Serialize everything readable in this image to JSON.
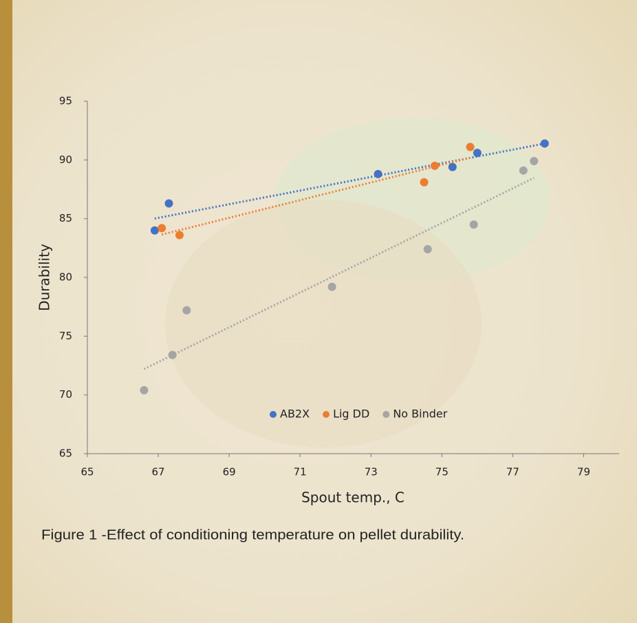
{
  "chart_data": {
    "type": "scatter",
    "xlabel": "Spout temp., C",
    "ylabel": "Durability",
    "caption": "Figure 1 -Effect of conditioning temperature on pellet durability.",
    "xlim": [
      65,
      80
    ],
    "xticks": [
      65,
      67,
      69,
      71,
      73,
      75,
      77,
      79
    ],
    "ylim": [
      65,
      95
    ],
    "yticks": [
      65,
      70,
      75,
      80,
      85,
      90,
      95
    ],
    "trendline": true,
    "legend": "bottom",
    "series": [
      {
        "name": "AB2X",
        "color": "#4472c4",
        "x": [
          66.9,
          67.3,
          73.2,
          75.3,
          76.0,
          77.9
        ],
        "values": [
          84.0,
          86.3,
          88.8,
          89.4,
          90.6,
          91.4
        ]
      },
      {
        "name": "Lig DD",
        "color": "#ed7d31",
        "x": [
          67.1,
          67.6,
          74.5,
          74.8,
          75.8
        ],
        "values": [
          84.2,
          83.6,
          88.1,
          89.5,
          91.1
        ]
      },
      {
        "name": "No Binder",
        "color": "#a5a5a5",
        "x": [
          66.6,
          67.4,
          67.8,
          71.9,
          74.6,
          75.9,
          77.3,
          77.6
        ],
        "values": [
          70.4,
          73.4,
          77.2,
          79.2,
          82.4,
          84.5,
          89.1,
          89.9
        ]
      }
    ]
  }
}
